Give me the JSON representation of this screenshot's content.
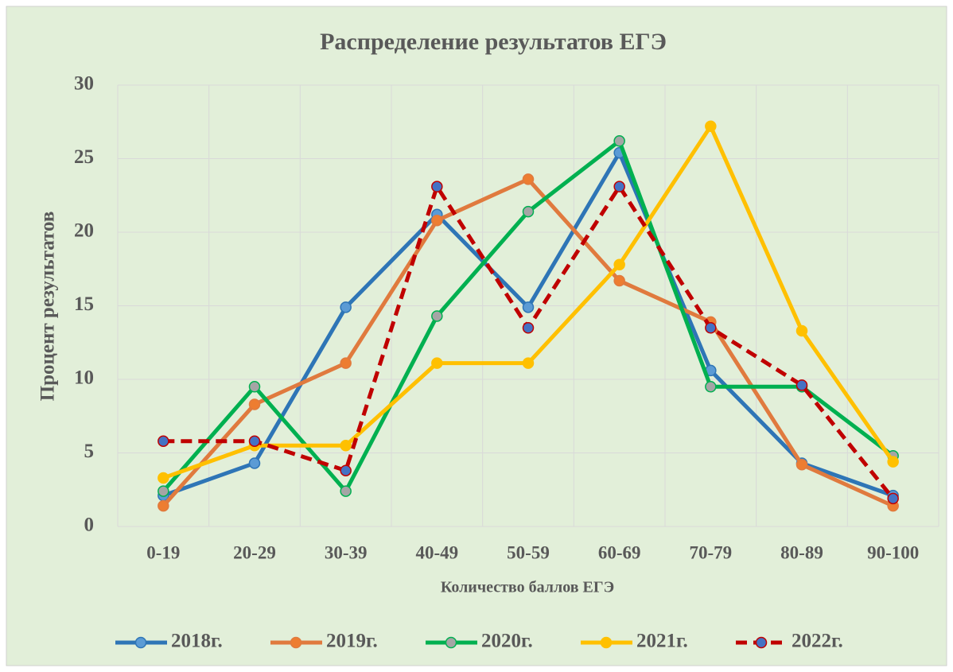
{
  "chart_data": {
    "type": "line",
    "title": "Распределение результатов ЕГЭ",
    "x_label": "Количество баллов ЕГЭ",
    "y_label": "Процент результатов",
    "categories": [
      "0-19",
      "20-29",
      "30-39",
      "40-49",
      "50-59",
      "60-69",
      "70-79",
      "80-89",
      "90-100"
    ],
    "series": [
      {
        "name": "2018г.",
        "color": "#2e75b6",
        "marker_color": "#5b9bd5",
        "values": [
          2.1,
          4.3,
          14.9,
          21.2,
          14.9,
          25.4,
          10.6,
          4.3,
          2.1
        ]
      },
      {
        "name": "2019г.",
        "color": "#e07a3e",
        "marker_color": "#ed7d31",
        "values": [
          1.4,
          8.3,
          11.1,
          20.8,
          23.6,
          16.7,
          13.9,
          4.2,
          1.4
        ]
      },
      {
        "name": "2020г.",
        "color": "#00b050",
        "marker_color": "#a5a5a5",
        "values": [
          2.4,
          9.5,
          2.4,
          14.3,
          21.4,
          26.2,
          9.5,
          9.5,
          4.8
        ]
      },
      {
        "name": "2021г.",
        "color": "#ffc000",
        "marker_color": "#ffc000",
        "values": [
          3.3,
          5.5,
          5.5,
          11.1,
          11.1,
          17.8,
          27.2,
          13.3,
          4.4
        ]
      },
      {
        "name": "2022г.",
        "color": "#c00000",
        "marker_color": "#4472c4",
        "dashed": true,
        "values": [
          5.8,
          5.8,
          3.8,
          23.1,
          13.5,
          23.1,
          13.5,
          9.6,
          1.9
        ]
      }
    ],
    "ylim": [
      0,
      30
    ],
    "yticks": [
      0,
      5,
      10,
      15,
      20,
      25,
      30
    ],
    "grid": true,
    "legend": "bottom"
  }
}
